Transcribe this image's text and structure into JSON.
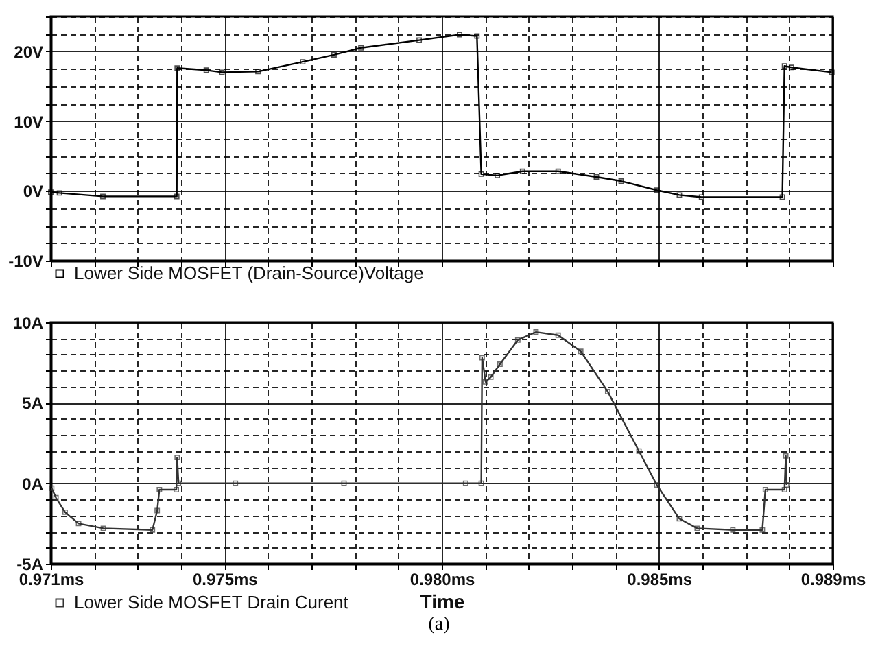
{
  "chart_data": [
    {
      "type": "line",
      "tick_labels": "y",
      "grid": true,
      "legend": "bottom left",
      "marker": "square",
      "line_style": "solid",
      "xlim": [
        0.971,
        0.989
      ],
      "xticks": [
        0.971,
        0.972,
        0.973,
        0.974,
        0.975,
        0.976,
        0.977,
        0.978,
        0.979,
        0.98,
        0.981,
        0.982,
        0.983,
        0.984,
        0.985,
        0.986,
        0.987,
        0.988,
        0.989
      ],
      "ylim": [
        -10,
        25
      ],
      "yticks": [
        {
          "value": -10,
          "label": "-10V"
        },
        {
          "value": -7.5,
          "label": null
        },
        {
          "value": -5,
          "label": null
        },
        {
          "value": -2.5,
          "label": null
        },
        {
          "value": 0,
          "label": "0V"
        },
        {
          "value": 2.5,
          "label": null
        },
        {
          "value": 5,
          "label": null
        },
        {
          "value": 7.5,
          "label": null
        },
        {
          "value": 10,
          "label": "10V"
        },
        {
          "value": 12.5,
          "label": null
        },
        {
          "value": 15,
          "label": null
        },
        {
          "value": 17.5,
          "label": null
        },
        {
          "value": 20,
          "label": "20V"
        },
        {
          "value": 22.5,
          "label": null
        },
        {
          "value": 25,
          "label": null
        }
      ],
      "series": [
        {
          "name": "Lower Side MOSFET (Drain-Source)Voltage",
          "color": "#000000",
          "x": [
            0.971,
            0.9712,
            0.9722,
            0.9739,
            0.97391,
            0.97458,
            0.97494,
            0.97577,
            0.9768,
            0.97752,
            0.97814,
            0.97948,
            0.98041,
            0.98081,
            0.98091,
            0.98128,
            0.98186,
            0.98268,
            0.98356,
            0.98413,
            0.98495,
            0.98547,
            0.98598,
            0.98784,
            0.98789,
            0.98805,
            0.98898
          ],
          "values": [
            -0.2,
            -0.3,
            -0.8,
            -0.8,
            17.6,
            17.3,
            17.0,
            17.1,
            18.5,
            19.5,
            20.5,
            21.6,
            22.4,
            22.2,
            2.4,
            2.2,
            2.8,
            2.8,
            2.0,
            1.4,
            0.1,
            -0.6,
            -0.9,
            -0.9,
            17.9,
            17.7,
            17.0
          ]
        }
      ]
    },
    {
      "type": "line",
      "grid": true,
      "legend": "bottom left",
      "marker": "square",
      "line_style": "solid",
      "xlabel": "Time",
      "annotations": [
        "(a)"
      ],
      "xlim": [
        0.971,
        0.989
      ],
      "xticks": [
        {
          "value": 0.971,
          "label": "0.971ms"
        },
        {
          "value": 0.972,
          "label": null
        },
        {
          "value": 0.973,
          "label": null
        },
        {
          "value": 0.974,
          "label": null
        },
        {
          "value": 0.975,
          "label": "0.975ms"
        },
        {
          "value": 0.976,
          "label": null
        },
        {
          "value": 0.977,
          "label": null
        },
        {
          "value": 0.978,
          "label": null
        },
        {
          "value": 0.979,
          "label": null
        },
        {
          "value": 0.98,
          "label": "0.980ms"
        },
        {
          "value": 0.981,
          "label": null
        },
        {
          "value": 0.982,
          "label": null
        },
        {
          "value": 0.983,
          "label": null
        },
        {
          "value": 0.984,
          "label": null
        },
        {
          "value": 0.985,
          "label": "0.985ms"
        },
        {
          "value": 0.986,
          "label": null
        },
        {
          "value": 0.987,
          "label": null
        },
        {
          "value": 0.988,
          "label": null
        },
        {
          "value": 0.989,
          "label": "0.989ms"
        }
      ],
      "ylim": [
        -5,
        10
      ],
      "yticks": [
        {
          "value": -5,
          "label": "-5A"
        },
        {
          "value": -4,
          "label": null
        },
        {
          "value": -3,
          "label": null
        },
        {
          "value": -2,
          "label": null
        },
        {
          "value": -1,
          "label": null
        },
        {
          "value": 0,
          "label": "0A"
        },
        {
          "value": 1,
          "label": null
        },
        {
          "value": 2,
          "label": null
        },
        {
          "value": 3,
          "label": null
        },
        {
          "value": 4,
          "label": null
        },
        {
          "value": 5,
          "label": "5A"
        },
        {
          "value": 6,
          "label": null
        },
        {
          "value": 7,
          "label": null
        },
        {
          "value": 8,
          "label": null
        },
        {
          "value": 9,
          "label": null
        },
        {
          "value": 10,
          "label": "10A"
        }
      ],
      "series": [
        {
          "name": "Lower Side MOSFET Drain Curent",
          "color": "#333333",
          "x": [
            0.97102,
            0.97112,
            0.97133,
            0.97164,
            0.97221,
            0.97334,
            0.97345,
            0.9735,
            0.97389,
            0.97391,
            0.97394,
            0.97525,
            0.97775,
            0.98055,
            0.98091,
            0.98093,
            0.98101,
            0.98113,
            0.98134,
            0.98175,
            0.98217,
            0.98268,
            0.9832,
            0.98382,
            0.98454,
            0.98495,
            0.98547,
            0.98588,
            0.9867,
            0.98738,
            0.98745,
            0.98789,
            0.98792,
            0.98794
          ],
          "values": [
            -0.3,
            -0.9,
            -1.8,
            -2.5,
            -2.8,
            -2.9,
            -1.7,
            -0.4,
            -0.4,
            1.6,
            0,
            0,
            0,
            0,
            0,
            7.8,
            6.3,
            6.6,
            7.4,
            8.9,
            9.4,
            9.2,
            8.2,
            5.7,
            2.0,
            -0.1,
            -2.2,
            -2.8,
            -2.9,
            -2.9,
            -0.4,
            -0.4,
            1.7,
            -0.1
          ]
        }
      ]
    }
  ]
}
